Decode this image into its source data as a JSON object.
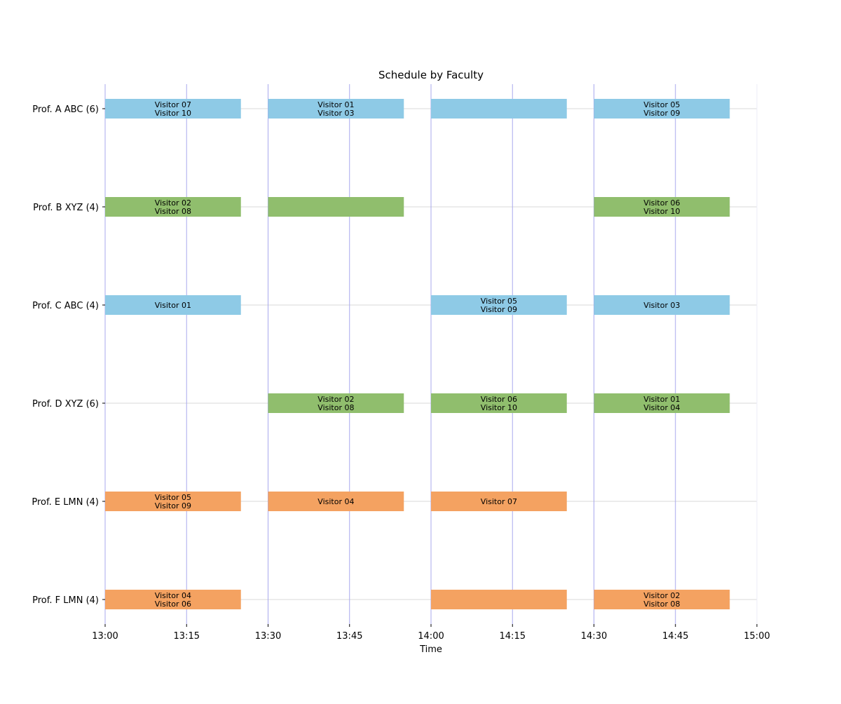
{
  "chart_data": {
    "type": "gantt",
    "title": "Schedule by Faculty",
    "xlabel": "Time",
    "ylabel": "",
    "x_range": [
      "13:00",
      "15:00"
    ],
    "x_ticks": [
      "13:00",
      "13:15",
      "13:30",
      "13:45",
      "14:00",
      "14:15",
      "14:30",
      "14:45",
      "15:00"
    ],
    "slot_duration_minutes": 25,
    "colors": {
      "ABC": "#8ecae6",
      "XYZ": "#90be6d",
      "LMN": "#f4a261",
      "grid_vertical": "#a9a9ee",
      "grid_horizontal": "#d9d9d9"
    },
    "rows": [
      {
        "label": "Prof. A ABC (6)",
        "group": "ABC",
        "bookings": [
          {
            "start": "13:00",
            "end": "13:25",
            "visitors": [
              "Visitor 07",
              "Visitor 10"
            ]
          },
          {
            "start": "13:30",
            "end": "13:55",
            "visitors": [
              "Visitor 01",
              "Visitor 03"
            ]
          },
          {
            "start": "14:00",
            "end": "14:25",
            "visitors": []
          },
          {
            "start": "14:30",
            "end": "14:55",
            "visitors": [
              "Visitor 05",
              "Visitor 09"
            ]
          }
        ]
      },
      {
        "label": "Prof. B XYZ (4)",
        "group": "XYZ",
        "bookings": [
          {
            "start": "13:00",
            "end": "13:25",
            "visitors": [
              "Visitor 02",
              "Visitor 08"
            ]
          },
          {
            "start": "13:30",
            "end": "13:55",
            "visitors": []
          },
          {
            "start": "14:30",
            "end": "14:55",
            "visitors": [
              "Visitor 06",
              "Visitor 10"
            ]
          }
        ]
      },
      {
        "label": "Prof. C ABC (4)",
        "group": "ABC",
        "bookings": [
          {
            "start": "13:00",
            "end": "13:25",
            "visitors": [
              "Visitor 01"
            ]
          },
          {
            "start": "14:00",
            "end": "14:25",
            "visitors": [
              "Visitor 05",
              "Visitor 09"
            ]
          },
          {
            "start": "14:30",
            "end": "14:55",
            "visitors": [
              "Visitor 03"
            ]
          }
        ]
      },
      {
        "label": "Prof. D XYZ (6)",
        "group": "XYZ",
        "bookings": [
          {
            "start": "13:30",
            "end": "13:55",
            "visitors": [
              "Visitor 02",
              "Visitor 08"
            ]
          },
          {
            "start": "14:00",
            "end": "14:25",
            "visitors": [
              "Visitor 06",
              "Visitor 10"
            ]
          },
          {
            "start": "14:30",
            "end": "14:55",
            "visitors": [
              "Visitor 01",
              "Visitor 04"
            ]
          }
        ]
      },
      {
        "label": "Prof. E LMN (4)",
        "group": "LMN",
        "bookings": [
          {
            "start": "13:00",
            "end": "13:25",
            "visitors": [
              "Visitor 05",
              "Visitor 09"
            ]
          },
          {
            "start": "13:30",
            "end": "13:55",
            "visitors": [
              "Visitor 04"
            ]
          },
          {
            "start": "14:00",
            "end": "14:25",
            "visitors": [
              "Visitor 07"
            ]
          }
        ]
      },
      {
        "label": "Prof. F LMN (4)",
        "group": "LMN",
        "bookings": [
          {
            "start": "13:00",
            "end": "13:25",
            "visitors": [
              "Visitor 04",
              "Visitor 06"
            ]
          },
          {
            "start": "14:00",
            "end": "14:25",
            "visitors": []
          },
          {
            "start": "14:30",
            "end": "14:55",
            "visitors": [
              "Visitor 02",
              "Visitor 08"
            ]
          }
        ]
      }
    ]
  }
}
